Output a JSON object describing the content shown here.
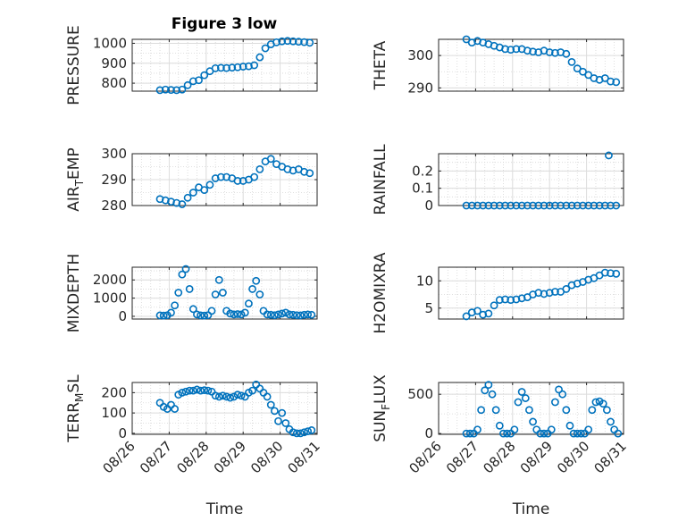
{
  "figure": {
    "title": "Figure 3 low"
  },
  "chart_data": [
    {
      "type": "scatter",
      "ylabel": "PRESSURE",
      "title": "Figure 3 low",
      "xlabel": "",
      "ylim": [
        760,
        1020
      ],
      "yticks": [
        800,
        900,
        1000
      ],
      "yticklabels": [
        "800",
        "900",
        "1000"
      ],
      "xlim": [
        "08/26",
        "08/31"
      ],
      "xticks": [
        "08/26",
        "08/27",
        "08/28",
        "08/29",
        "08/30",
        "08/31"
      ],
      "show_xticklabels": false,
      "x": [
        26.75,
        26.9,
        27.05,
        27.2,
        27.35,
        27.5,
        27.65,
        27.8,
        27.95,
        28.1,
        28.25,
        28.4,
        28.55,
        28.7,
        28.85,
        29.0,
        29.15,
        29.3,
        29.45,
        29.6,
        29.75,
        29.9,
        30.05,
        30.2,
        30.35,
        30.5,
        30.65,
        30.8
      ],
      "y": [
        765,
        768,
        766,
        765,
        768,
        790,
        810,
        815,
        840,
        860,
        875,
        877,
        876,
        878,
        880,
        883,
        885,
        890,
        930,
        975,
        995,
        1005,
        1010,
        1012,
        1010,
        1008,
        1006,
        1003
      ]
    },
    {
      "type": "scatter",
      "ylabel": "THETA",
      "xlabel": "",
      "ylim": [
        289,
        305
      ],
      "yticks": [
        290,
        300
      ],
      "yticklabels": [
        "290",
        "300"
      ],
      "xlim": [
        "08/26",
        "08/31"
      ],
      "xticks": [
        "08/26",
        "08/27",
        "08/28",
        "08/29",
        "08/30",
        "08/31"
      ],
      "show_xticklabels": false,
      "x": [
        26.75,
        26.9,
        27.05,
        27.2,
        27.35,
        27.5,
        27.65,
        27.8,
        27.95,
        28.1,
        28.25,
        28.4,
        28.55,
        28.7,
        28.85,
        29.0,
        29.15,
        29.3,
        29.45,
        29.6,
        29.75,
        29.9,
        30.05,
        30.2,
        30.35,
        30.5,
        30.65,
        30.8
      ],
      "y": [
        305,
        304,
        304.5,
        304,
        303.5,
        303,
        302.5,
        302,
        301.8,
        302,
        302,
        301.5,
        301.2,
        301,
        301.5,
        301,
        300.8,
        301,
        300.5,
        298,
        296,
        295,
        294,
        293,
        292.5,
        293,
        292,
        291.8
      ]
    },
    {
      "type": "scatter",
      "ylabel": "AIR_TEMP",
      "xlabel": "",
      "ylim": [
        280,
        300
      ],
      "yticks": [
        280,
        290,
        300
      ],
      "yticklabels": [
        "280",
        "290",
        "300"
      ],
      "xlim": [
        "08/26",
        "08/31"
      ],
      "xticks": [
        "08/26",
        "08/27",
        "08/28",
        "08/29",
        "08/30",
        "08/31"
      ],
      "show_xticklabels": false,
      "x": [
        26.75,
        26.9,
        27.05,
        27.2,
        27.35,
        27.5,
        27.65,
        27.8,
        27.95,
        28.1,
        28.25,
        28.4,
        28.55,
        28.7,
        28.85,
        29.0,
        29.15,
        29.3,
        29.45,
        29.6,
        29.75,
        29.9,
        30.05,
        30.2,
        30.35,
        30.5,
        30.65,
        30.8
      ],
      "y": [
        282.5,
        282,
        281.5,
        281,
        280.5,
        283,
        285,
        287,
        286,
        288,
        290.5,
        291,
        291,
        290.5,
        289.5,
        289.5,
        290,
        291,
        294,
        297,
        298,
        296,
        295,
        294,
        293.5,
        294,
        293,
        292.5
      ]
    },
    {
      "type": "scatter",
      "ylabel": "RAINFALL",
      "xlabel": "",
      "ylim": [
        0,
        0.3
      ],
      "yticks": [
        0,
        0.1,
        0.2
      ],
      "yticklabels": [
        "0",
        "0.1",
        "0.2"
      ],
      "xlim": [
        "08/26",
        "08/31"
      ],
      "xticks": [
        "08/26",
        "08/27",
        "08/28",
        "08/29",
        "08/30",
        "08/31"
      ],
      "show_xticklabels": false,
      "x": [
        26.75,
        26.9,
        27.05,
        27.2,
        27.35,
        27.5,
        27.65,
        27.8,
        27.95,
        28.1,
        28.25,
        28.4,
        28.55,
        28.7,
        28.85,
        29.0,
        29.15,
        29.3,
        29.45,
        29.6,
        29.75,
        29.9,
        30.05,
        30.2,
        30.35,
        30.5,
        30.6,
        30.65,
        30.8
      ],
      "y": [
        0,
        0,
        0,
        0,
        0,
        0,
        0,
        0,
        0,
        0,
        0,
        0,
        0,
        0,
        0,
        0,
        0,
        0,
        0,
        0,
        0,
        0,
        0,
        0,
        0,
        0,
        0.29,
        0,
        0
      ]
    },
    {
      "type": "scatter",
      "ylabel": "MIXDEPTH",
      "xlabel": "",
      "ylim": [
        -150,
        2700
      ],
      "yticks": [
        0,
        1000,
        2000
      ],
      "yticklabels": [
        "0",
        "1000",
        "2000"
      ],
      "xlim": [
        "08/26",
        "08/31"
      ],
      "xticks": [
        "08/26",
        "08/27",
        "08/28",
        "08/29",
        "08/30",
        "08/31"
      ],
      "show_xticklabels": false,
      "x": [
        26.75,
        26.85,
        26.95,
        27.05,
        27.15,
        27.25,
        27.35,
        27.45,
        27.55,
        27.65,
        27.75,
        27.85,
        27.95,
        28.05,
        28.15,
        28.25,
        28.35,
        28.45,
        28.55,
        28.65,
        28.75,
        28.85,
        28.95,
        29.05,
        29.15,
        29.25,
        29.35,
        29.45,
        29.55,
        29.65,
        29.75,
        29.85,
        29.95,
        30.05,
        30.15,
        30.25,
        30.35,
        30.45,
        30.55,
        30.65,
        30.75,
        30.85
      ],
      "y": [
        50,
        40,
        60,
        200,
        600,
        1300,
        2300,
        2600,
        1500,
        400,
        100,
        50,
        40,
        60,
        300,
        1200,
        2000,
        1300,
        300,
        150,
        100,
        120,
        100,
        200,
        700,
        1500,
        1950,
        1200,
        300,
        100,
        80,
        60,
        100,
        150,
        200,
        100,
        80,
        60,
        50,
        80,
        100,
        80
      ]
    },
    {
      "type": "scatter",
      "ylabel": "H2OMIXRA",
      "xlabel": "",
      "ylim": [
        3,
        12.5
      ],
      "yticks": [
        5,
        10
      ],
      "yticklabels": [
        "5",
        "10"
      ],
      "xlim": [
        "08/26",
        "08/31"
      ],
      "xticks": [
        "08/26",
        "08/27",
        "08/28",
        "08/29",
        "08/30",
        "08/31"
      ],
      "show_xticklabels": false,
      "x": [
        26.75,
        26.9,
        27.05,
        27.2,
        27.35,
        27.5,
        27.65,
        27.8,
        27.95,
        28.1,
        28.25,
        28.4,
        28.55,
        28.7,
        28.85,
        29.0,
        29.15,
        29.3,
        29.45,
        29.6,
        29.75,
        29.9,
        30.05,
        30.2,
        30.35,
        30.5,
        30.65,
        30.8
      ],
      "y": [
        3.5,
        4.2,
        4.5,
        3.8,
        4,
        5.5,
        6.5,
        6.6,
        6.5,
        6.6,
        6.8,
        7,
        7.5,
        7.8,
        7.6,
        7.8,
        8,
        8,
        8.5,
        9.2,
        9.5,
        9.8,
        10.2,
        10.5,
        11,
        11.5,
        11.4,
        11.3
      ]
    },
    {
      "type": "scatter",
      "ylabel": "TERR_MSL",
      "xlabel": "Time",
      "ylim": [
        -5,
        250
      ],
      "yticks": [
        0,
        100,
        200
      ],
      "yticklabels": [
        "0",
        "100",
        "200"
      ],
      "xlim": [
        "08/26",
        "08/31"
      ],
      "xticks": [
        "08/26",
        "08/27",
        "08/28",
        "08/29",
        "08/30",
        "08/31"
      ],
      "show_xticklabels": true,
      "x": [
        26.75,
        26.85,
        26.95,
        27.05,
        27.15,
        27.25,
        27.35,
        27.45,
        27.55,
        27.65,
        27.75,
        27.85,
        27.95,
        28.05,
        28.15,
        28.25,
        28.35,
        28.45,
        28.55,
        28.65,
        28.75,
        28.85,
        28.95,
        29.05,
        29.15,
        29.25,
        29.35,
        29.45,
        29.55,
        29.65,
        29.75,
        29.85,
        29.95,
        30.05,
        30.15,
        30.25,
        30.35,
        30.45,
        30.55,
        30.65,
        30.75,
        30.85
      ],
      "y": [
        150,
        130,
        120,
        140,
        120,
        190,
        200,
        205,
        210,
        210,
        215,
        210,
        212,
        210,
        205,
        185,
        180,
        185,
        180,
        175,
        180,
        190,
        185,
        180,
        200,
        210,
        240,
        220,
        200,
        180,
        140,
        110,
        60,
        100,
        50,
        20,
        5,
        0,
        0,
        5,
        10,
        15
      ]
    },
    {
      "type": "scatter",
      "ylabel": "SUN_FLUX",
      "xlabel": "Time",
      "ylim": [
        -10,
        650
      ],
      "yticks": [
        0,
        500
      ],
      "yticklabels": [
        "0",
        "500"
      ],
      "xlim": [
        "08/26",
        "08/31"
      ],
      "xticks": [
        "08/26",
        "08/27",
        "08/28",
        "08/29",
        "08/30",
        "08/31"
      ],
      "show_xticklabels": true,
      "x": [
        26.75,
        26.85,
        26.95,
        27.05,
        27.15,
        27.25,
        27.35,
        27.45,
        27.55,
        27.65,
        27.75,
        27.85,
        27.95,
        28.05,
        28.15,
        28.25,
        28.35,
        28.45,
        28.55,
        28.65,
        28.75,
        28.85,
        28.95,
        29.05,
        29.15,
        29.25,
        29.35,
        29.45,
        29.55,
        29.65,
        29.75,
        29.85,
        29.95,
        30.05,
        30.15,
        30.25,
        30.35,
        30.45,
        30.55,
        30.65,
        30.75,
        30.85
      ],
      "y": [
        0,
        0,
        0,
        50,
        300,
        550,
        620,
        500,
        300,
        100,
        0,
        0,
        0,
        50,
        400,
        530,
        450,
        300,
        150,
        50,
        0,
        0,
        0,
        50,
        400,
        560,
        500,
        300,
        100,
        0,
        0,
        0,
        0,
        50,
        300,
        400,
        410,
        380,
        300,
        150,
        50,
        0
      ]
    }
  ]
}
